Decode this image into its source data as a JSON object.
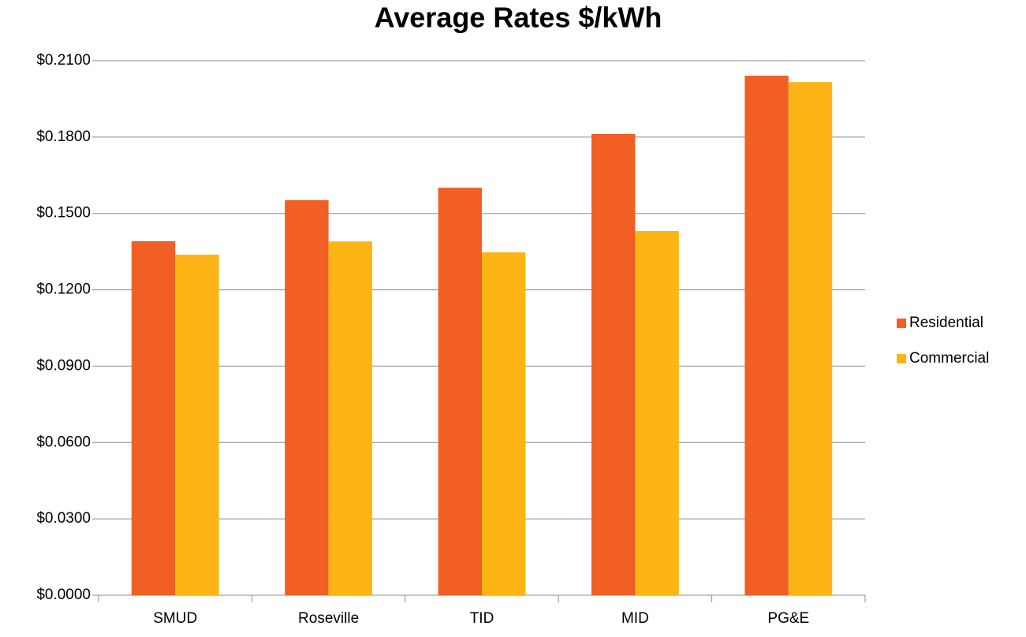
{
  "chart_data": {
    "type": "bar",
    "title": "Average Rates $/kWh",
    "categories": [
      "SMUD",
      "Roseville",
      "TID",
      "MID",
      "PG&E"
    ],
    "series": [
      {
        "name": "Residential",
        "color": "#f15f24",
        "values": [
          0.1391,
          0.1552,
          0.1601,
          0.1812,
          0.2041
        ]
      },
      {
        "name": "Commercial",
        "color": "#fdb515",
        "values": [
          0.1338,
          0.139,
          0.1347,
          0.1431,
          0.2016
        ]
      }
    ],
    "ylim": [
      0,
      0.21
    ],
    "yticks": [
      {
        "value": 0,
        "label": "$0.0000"
      },
      {
        "value": 0.03,
        "label": "$0.0300"
      },
      {
        "value": 0.06,
        "label": "$0.0600"
      },
      {
        "value": 0.09,
        "label": "$0.0900"
      },
      {
        "value": 0.12,
        "label": "$0.1200"
      },
      {
        "value": 0.15,
        "label": "$0.1500"
      },
      {
        "value": 0.18,
        "label": "$0.1800"
      },
      {
        "value": 0.21,
        "label": "$0.2100"
      }
    ],
    "grid": true,
    "legend": "right"
  }
}
